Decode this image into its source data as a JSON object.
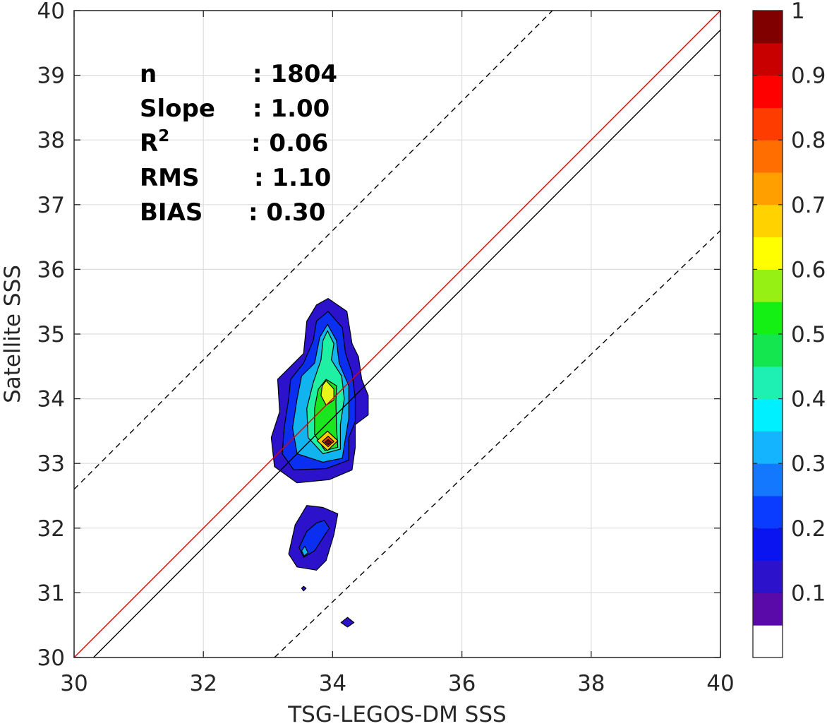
{
  "chart_data": {
    "type": "contour",
    "xlabel": "TSG-LEGOS-DM SSS",
    "ylabel": "Satellite SSS",
    "xlim": [
      30,
      40
    ],
    "ylim": [
      30,
      40
    ],
    "xticks": [
      30,
      32,
      34,
      36,
      38,
      40
    ],
    "yticks": [
      30,
      31,
      32,
      33,
      34,
      35,
      36,
      37,
      38,
      39,
      40
    ],
    "grid": true,
    "stats": [
      {
        "label": "n",
        "value": ": 1804"
      },
      {
        "label": "Slope",
        "value": ": 1.00"
      },
      {
        "label": "R",
        "sup": "2",
        "value": ": 0.06"
      },
      {
        "label": "RMS",
        "value": ": 1.10"
      },
      {
        "label": "BIAS",
        "value": ": 0.30"
      }
    ],
    "lines": [
      {
        "kind": "one-to-one",
        "color": "#e00000",
        "style": "solid",
        "points": [
          [
            30,
            30
          ],
          [
            40,
            40
          ]
        ]
      },
      {
        "kind": "regression",
        "color": "#000000",
        "style": "solid",
        "points": [
          [
            30.3,
            30
          ],
          [
            40,
            39.7
          ]
        ]
      },
      {
        "kind": "upper-bound",
        "color": "#000000",
        "style": "dashed",
        "points": [
          [
            30,
            32.6
          ],
          [
            37.4,
            40
          ]
        ]
      },
      {
        "kind": "lower-bound",
        "color": "#000000",
        "style": "dashed",
        "points": [
          [
            33.1,
            30
          ],
          [
            40,
            36.6
          ]
        ]
      }
    ],
    "density_regions": [
      {
        "level": 0.1,
        "color": "#2d12cc",
        "points": [
          [
            33.93,
            35.55
          ],
          [
            34.22,
            35.35
          ],
          [
            34.3,
            34.85
          ],
          [
            34.4,
            34.65
          ],
          [
            34.45,
            34.3
          ],
          [
            34.55,
            34.05
          ],
          [
            34.55,
            33.75
          ],
          [
            34.35,
            33.6
          ],
          [
            34.35,
            33.25
          ],
          [
            34.3,
            32.9
          ],
          [
            33.95,
            32.75
          ],
          [
            33.45,
            32.7
          ],
          [
            33.1,
            32.95
          ],
          [
            33.05,
            33.4
          ],
          [
            33.18,
            33.8
          ],
          [
            33.15,
            34.3
          ],
          [
            33.35,
            34.5
          ],
          [
            33.55,
            34.7
          ],
          [
            33.6,
            35.2
          ],
          [
            33.75,
            35.45
          ]
        ]
      },
      {
        "level": 0.2,
        "color": "#0a2ff0",
        "points": [
          [
            33.93,
            35.35
          ],
          [
            34.15,
            35.1
          ],
          [
            34.2,
            34.7
          ],
          [
            34.3,
            34.4
          ],
          [
            34.35,
            34.0
          ],
          [
            34.35,
            33.65
          ],
          [
            34.25,
            33.4
          ],
          [
            34.25,
            33.05
          ],
          [
            33.9,
            32.92
          ],
          [
            33.4,
            32.9
          ],
          [
            33.22,
            33.15
          ],
          [
            33.25,
            33.55
          ],
          [
            33.32,
            34.0
          ],
          [
            33.35,
            34.3
          ],
          [
            33.55,
            34.55
          ],
          [
            33.7,
            34.9
          ],
          [
            33.75,
            35.2
          ]
        ]
      },
      {
        "level": 0.3,
        "color": "#12b4f0",
        "points": [
          [
            33.92,
            35.15
          ],
          [
            34.06,
            34.9
          ],
          [
            34.1,
            34.55
          ],
          [
            34.25,
            34.2
          ],
          [
            34.25,
            33.7
          ],
          [
            34.2,
            33.4
          ],
          [
            34.15,
            33.08
          ],
          [
            33.85,
            33.02
          ],
          [
            33.45,
            33.15
          ],
          [
            33.38,
            33.55
          ],
          [
            33.45,
            34.0
          ],
          [
            33.52,
            34.35
          ],
          [
            33.72,
            34.55
          ],
          [
            33.8,
            34.95
          ]
        ]
      },
      {
        "level": 0.4,
        "color": "#20f0a4",
        "points": [
          [
            33.92,
            35.05
          ],
          [
            34.02,
            34.85
          ],
          [
            33.98,
            34.6
          ],
          [
            34.14,
            34.35
          ],
          [
            34.18,
            34.0
          ],
          [
            34.12,
            33.6
          ],
          [
            34.12,
            33.22
          ],
          [
            33.85,
            33.15
          ],
          [
            33.62,
            33.4
          ],
          [
            33.6,
            33.85
          ],
          [
            33.7,
            34.25
          ],
          [
            33.82,
            34.6
          ],
          [
            33.85,
            34.9
          ]
        ]
      },
      {
        "level": 0.5,
        "color": "#19e61e",
        "points": [
          [
            33.9,
            34.3
          ],
          [
            34.06,
            34.2
          ],
          [
            34.05,
            33.95
          ],
          [
            34.06,
            33.55
          ],
          [
            34.08,
            33.25
          ],
          [
            33.88,
            33.2
          ],
          [
            33.72,
            33.45
          ],
          [
            33.72,
            33.85
          ],
          [
            33.78,
            34.15
          ]
        ]
      },
      {
        "level": 0.65,
        "color": "#e8f51a",
        "points": [
          [
            33.9,
            34.28
          ],
          [
            34.02,
            34.15
          ],
          [
            34.02,
            33.98
          ],
          [
            33.9,
            33.9
          ],
          [
            33.82,
            34.05
          ],
          [
            33.84,
            34.2
          ]
        ]
      },
      {
        "level": 0.7,
        "color": "#ffcc00",
        "points": [
          [
            33.92,
            33.5
          ],
          [
            34.08,
            33.35
          ],
          [
            33.92,
            33.2
          ],
          [
            33.76,
            33.35
          ]
        ]
      },
      {
        "level": 0.85,
        "color": "#ff4000",
        "points": [
          [
            33.93,
            33.42
          ],
          [
            34.02,
            33.34
          ],
          [
            33.93,
            33.26
          ],
          [
            33.84,
            33.34
          ]
        ]
      },
      {
        "level": 1.0,
        "color": "#800000",
        "points": [
          [
            33.93,
            33.37
          ],
          [
            33.98,
            33.33
          ],
          [
            33.93,
            33.29
          ],
          [
            33.88,
            33.33
          ]
        ]
      },
      {
        "level": 0.1,
        "color": "#2d12cc",
        "points": [
          [
            33.6,
            32.35
          ],
          [
            33.85,
            32.32
          ],
          [
            34.08,
            32.22
          ],
          [
            34.02,
            31.9
          ],
          [
            33.9,
            31.5
          ],
          [
            33.75,
            31.35
          ],
          [
            33.45,
            31.4
          ],
          [
            33.32,
            31.6
          ],
          [
            33.42,
            32.05
          ]
        ]
      },
      {
        "level": 0.2,
        "color": "#0a2ff0",
        "points": [
          [
            33.87,
            32.12
          ],
          [
            33.95,
            32.0
          ],
          [
            33.85,
            31.85
          ],
          [
            33.72,
            31.65
          ],
          [
            33.55,
            31.55
          ],
          [
            33.48,
            31.7
          ],
          [
            33.6,
            31.95
          ],
          [
            33.75,
            32.08
          ]
        ]
      },
      {
        "level": 0.3,
        "color": "#12b4f0",
        "points": [
          [
            33.57,
            31.72
          ],
          [
            33.62,
            31.62
          ],
          [
            33.56,
            31.57
          ],
          [
            33.52,
            31.65
          ]
        ]
      },
      {
        "level": 0.1,
        "color": "#2d12cc",
        "points": [
          [
            33.55,
            31.1
          ],
          [
            33.59,
            31.07
          ],
          [
            33.55,
            31.03
          ],
          [
            33.52,
            31.07
          ]
        ]
      },
      {
        "level": 0.1,
        "color": "#2d12cc",
        "points": [
          [
            34.23,
            30.62
          ],
          [
            34.33,
            30.54
          ],
          [
            34.23,
            30.47
          ],
          [
            34.13,
            30.54
          ]
        ]
      }
    ],
    "colorbar": {
      "ticks": [
        "0.1",
        "0.2",
        "0.3",
        "0.4",
        "0.5",
        "0.6",
        "0.7",
        "0.8",
        "0.9",
        "1"
      ],
      "tick_values": [
        0.1,
        0.2,
        0.3,
        0.4,
        0.5,
        0.6,
        0.7,
        0.8,
        0.9,
        1.0
      ],
      "range": [
        0,
        1
      ],
      "colors": [
        "#ffffff",
        "#5a0aa8",
        "#2d12cc",
        "#0a14f0",
        "#0a3cff",
        "#1478ff",
        "#14b4ff",
        "#00f0ff",
        "#1ef0b4",
        "#14e650",
        "#14f014",
        "#96f014",
        "#ffff00",
        "#ffd200",
        "#ffa000",
        "#ff6e00",
        "#ff3c00",
        "#ff0000",
        "#c80000",
        "#800000"
      ]
    }
  }
}
